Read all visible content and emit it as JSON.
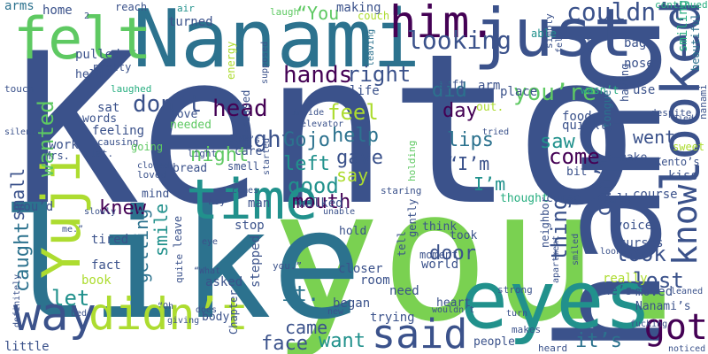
{
  "colors": {
    "background": "#ffffff",
    "palette": [
      "#3b528b",
      "#2c728e",
      "#21918c",
      "#28ae80",
      "#5ec962",
      "#addc30",
      "#440154",
      "#472d7b"
    ]
  },
  "words": [
    {
      "text": "Kento",
      "color": "#3b528b"
    },
    {
      "text": "you.",
      "color": "#7ad151"
    },
    {
      "text": "like",
      "color": "#2c728e"
    },
    {
      "text": "hand",
      "color": "#3b528b"
    },
    {
      "text": "Nanami",
      "color": "#2c728e"
    },
    {
      "text": "just",
      "color": "#3b528b"
    },
    {
      "text": "eyes",
      "color": "#21918c"
    },
    {
      "text": "time",
      "color": "#21918c"
    },
    {
      "text": "felt",
      "color": "#5ec962"
    },
    {
      "text": "him.",
      "color": "#440154"
    },
    {
      "text": "didn’t",
      "color": "#addc30"
    },
    {
      "text": "said",
      "color": "#3b528b"
    },
    {
      "text": "looked",
      "color": "#3b528b"
    },
    {
      "text": "know",
      "color": "#3b528b"
    },
    {
      "text": "got",
      "color": "#440154"
    },
    {
      "text": "way",
      "color": "#3b528b"
    },
    {
      "text": "Yuji",
      "color": "#addc30"
    },
    {
      "text": "couldn’t",
      "color": "#3b528b"
    },
    {
      "text": "looking",
      "color": "#3b528b"
    },
    {
      "text": "head",
      "color": "#440154"
    },
    {
      "text": "“You",
      "color": "#5ec962"
    },
    {
      "text": "sight",
      "color": "#3b528b"
    },
    {
      "text": "hands",
      "color": "#440154"
    },
    {
      "text": "right",
      "color": "#3b528b"
    },
    {
      "text": "did",
      "color": "#2c728e"
    },
    {
      "text": "you’re",
      "color": "#5ec962"
    },
    {
      "text": "don’t",
      "color": "#3b528b"
    },
    {
      "text": "feel",
      "color": "#addc30"
    },
    {
      "text": "day",
      "color": "#440154"
    },
    {
      "text": "wanted",
      "color": "#5ec962"
    },
    {
      "text": "Gojo",
      "color": "#2c728e"
    },
    {
      "text": "help",
      "color": "#2c728e"
    },
    {
      "text": "lips",
      "color": "#2c728e"
    },
    {
      "text": "saw",
      "color": "#21918c"
    },
    {
      "text": "went",
      "color": "#3b528b"
    },
    {
      "text": "night",
      "color": "#5ec962"
    },
    {
      "text": "left",
      "color": "#21918c"
    },
    {
      "text": "gave",
      "color": "#3b528b"
    },
    {
      "text": "come",
      "color": "#440154"
    },
    {
      "text": "“I’m",
      "color": "#3b528b"
    },
    {
      "text": "say",
      "color": "#addc30"
    },
    {
      "text": "good",
      "color": "#21918c"
    },
    {
      "text": "I’m",
      "color": "#21918c"
    },
    {
      "text": "small",
      "color": "#3b528b"
    },
    {
      "text": "caught",
      "color": "#2c728e"
    },
    {
      "text": "knew",
      "color": "#440154"
    },
    {
      "text": "mouth",
      "color": "#440154"
    },
    {
      "text": "can’t",
      "color": "#3b528b"
    },
    {
      "text": "thing",
      "color": "#3b528b"
    },
    {
      "text": "look",
      "color": "#3b528b"
    },
    {
      "text": "getting",
      "color": "#2c728e"
    },
    {
      "text": "smile",
      "color": "#21918c"
    },
    {
      "text": "let",
      "color": "#21918c"
    },
    {
      "text": "it.",
      "color": "#2c728e"
    },
    {
      "text": "came",
      "color": "#3b528b"
    },
    {
      "text": "door",
      "color": "#3b528b"
    },
    {
      "text": "lost",
      "color": "#3b528b"
    },
    {
      "text": "face",
      "color": "#3b528b"
    },
    {
      "text": "want",
      "color": "#21918c"
    },
    {
      "text": "it’s",
      "color": "#2c728e"
    },
    {
      "text": "arms",
      "color": "#2c728e"
    },
    {
      "text": "home",
      "color": "#3b528b"
    },
    {
      "text": "reach",
      "color": "#3b528b"
    },
    {
      "text": "air",
      "color": "#21918c"
    },
    {
      "text": "turned",
      "color": "#3b528b"
    },
    {
      "text": "laugh",
      "color": "#5ec962"
    },
    {
      "text": "making",
      "color": "#3b528b"
    },
    {
      "text": "couch",
      "color": "#addc30"
    },
    {
      "text": "able",
      "color": "#21918c"
    },
    {
      "text": "continued",
      "color": "#28ae80"
    },
    {
      "text": "smiling",
      "color": "#28ae80"
    },
    {
      "text": "bag",
      "color": "#3b528b"
    },
    {
      "text": "beautiful",
      "color": "#2c728e"
    },
    {
      "text": "energy",
      "color": "#addc30"
    },
    {
      "text": "supposed",
      "color": "#3b528b"
    },
    {
      "text": "leaving",
      "color": "#2c728e"
    },
    {
      "text": "simply",
      "color": "#3b528b"
    },
    {
      "text": "his.",
      "color": "#3b528b"
    },
    {
      "text": "fell",
      "color": "#3b528b"
    },
    {
      "text": "pulled",
      "color": "#3b528b"
    },
    {
      "text": "pretty",
      "color": "#3b528b"
    },
    {
      "text": "held",
      "color": "#3b528b"
    },
    {
      "text": "nose",
      "color": "#3b528b"
    },
    {
      "text": "use",
      "color": "#3b528b"
    },
    {
      "text": "wasn’t",
      "color": "#28ae80"
    },
    {
      "text": "having",
      "color": "#3b528b"
    },
    {
      "text": "nanami",
      "color": "#3b528b"
    },
    {
      "text": "life",
      "color": "#3b528b"
    },
    {
      "text": "soft",
      "color": "#3b528b"
    },
    {
      "text": "place",
      "color": "#3b528b"
    },
    {
      "text": "arm",
      "color": "#3b528b"
    },
    {
      "text": "laughed",
      "color": "#28ae80"
    },
    {
      "text": "out.",
      "color": "#addc30"
    },
    {
      "text": "tongue",
      "color": "#2c728e"
    },
    {
      "text": "food",
      "color": "#3b528b"
    },
    {
      "text": "despite",
      "color": "#3b528b"
    },
    {
      "text": "sat",
      "color": "#3b528b"
    },
    {
      "text": "words",
      "color": "#3b528b"
    },
    {
      "text": "touch",
      "color": "#3b528b"
    },
    {
      "text": "love",
      "color": "#3b528b"
    },
    {
      "text": "needed",
      "color": "#5ec962"
    },
    {
      "text": "inside",
      "color": "#3b528b"
    },
    {
      "text": "elevator",
      "color": "#3b528b"
    },
    {
      "text": "quickly",
      "color": "#3b528b"
    },
    {
      "text": "died",
      "color": "#3b528b"
    },
    {
      "text": "feeling",
      "color": "#3b528b"
    },
    {
      "text": "kissed",
      "color": "#3b528b"
    },
    {
      "text": "He’s",
      "color": "#3b528b"
    },
    {
      "text": "tried",
      "color": "#3b528b"
    },
    {
      "text": "sweet",
      "color": "#addc30"
    },
    {
      "text": "causing",
      "color": "#3b528b"
    },
    {
      "text": "silence",
      "color": "#3b528b"
    },
    {
      "text": "make",
      "color": "#3b528b"
    },
    {
      "text": "Kento’s",
      "color": "#3b528b"
    },
    {
      "text": "kiss",
      "color": "#3b528b"
    },
    {
      "text": "work",
      "color": "#3b528b"
    },
    {
      "text": "going",
      "color": "#5ec962"
    },
    {
      "text": "light",
      "color": "#3b528b"
    },
    {
      "text": "care",
      "color": "#3b528b"
    },
    {
      "text": "Mrs.",
      "color": "#3b528b"
    },
    {
      "text": "flat.",
      "color": "#3b528b"
    },
    {
      "text": "closed",
      "color": "#3b528b"
    },
    {
      "text": "smell",
      "color": "#3b528b"
    },
    {
      "text": "started",
      "color": "#3b528b"
    },
    {
      "text": "holding",
      "color": "#5ec962"
    },
    {
      "text": "bit",
      "color": "#3b528b"
    },
    {
      "text": "loved",
      "color": "#3b528b"
    },
    {
      "text": "bread",
      "color": "#3b528b"
    },
    {
      "text": "comes",
      "color": "#3b528b"
    },
    {
      "text": "staring",
      "color": "#3b528b"
    },
    {
      "text": "you’d",
      "color": "#3b528b"
    },
    {
      "text": "mind",
      "color": "#3b528b"
    },
    {
      "text": "boy",
      "color": "#3b528b"
    },
    {
      "text": "man",
      "color": "#3b528b"
    },
    {
      "text": "walked",
      "color": "#3b528b"
    },
    {
      "text": "unable",
      "color": "#3b528b"
    },
    {
      "text": "thought",
      "color": "#28ae80"
    },
    {
      "text": "curse",
      "color": "#3b528b"
    },
    {
      "text": "talk",
      "color": "#3b528b"
    },
    {
      "text": "course",
      "color": "#3b528b"
    },
    {
      "text": "neighbor",
      "color": "#3b528b"
    },
    {
      "text": "slowly",
      "color": "#3b528b"
    },
    {
      "text": "me.”",
      "color": "#3b528b"
    },
    {
      "text": "stop",
      "color": "#3b528b"
    },
    {
      "text": "hold",
      "color": "#3b528b"
    },
    {
      "text": "think",
      "color": "#3b528b"
    },
    {
      "text": "gently",
      "color": "#3b528b"
    },
    {
      "text": "tired",
      "color": "#3b528b"
    },
    {
      "text": "eye",
      "color": "#3b528b"
    },
    {
      "text": "took",
      "color": "#3b528b"
    },
    {
      "text": "voice",
      "color": "#3b528b"
    },
    {
      "text": "fact",
      "color": "#3b528b"
    },
    {
      "text": "leave",
      "color": "#3b528b"
    },
    {
      "text": "moment",
      "color": "#3b528b"
    },
    {
      "text": "curses",
      "color": "#3b528b"
    },
    {
      "text": "book",
      "color": "#addc30"
    },
    {
      "text": "quite",
      "color": "#3b528b"
    },
    {
      "text": "“What",
      "color": "#3b528b"
    },
    {
      "text": "tell",
      "color": "#3b528b"
    },
    {
      "text": "world",
      "color": "#3b528b"
    },
    {
      "text": "apartment",
      "color": "#3b528b"
    },
    {
      "text": "looks",
      "color": "#3b528b"
    },
    {
      "text": "smiled",
      "color": "#3b528b"
    },
    {
      "text": "asked",
      "color": "#3b528b"
    },
    {
      "text": "you.”",
      "color": "#3b528b"
    },
    {
      "text": "stepped",
      "color": "#3b528b"
    },
    {
      "text": "really",
      "color": "#addc30"
    },
    {
      "text": "moved",
      "color": "#3b528b"
    },
    {
      "text": "definitely",
      "color": "#3b528b"
    },
    {
      "text": "room",
      "color": "#3b528b"
    },
    {
      "text": "he’s",
      "color": "#3b528b"
    },
    {
      "text": "“Oh",
      "color": "#3b528b"
    },
    {
      "text": "closer",
      "color": "#3b528b"
    },
    {
      "text": "need",
      "color": "#3b528b"
    },
    {
      "text": "strong",
      "color": "#3b528b"
    },
    {
      "text": "leaned",
      "color": "#3b528b"
    },
    {
      "text": "body",
      "color": "#3b528b"
    },
    {
      "text": "does",
      "color": "#3b528b"
    },
    {
      "text": "began",
      "color": "#3b528b"
    },
    {
      "text": "heart",
      "color": "#3b528b"
    },
    {
      "text": "Nanami’s",
      "color": "#3b528b"
    },
    {
      "text": "giving",
      "color": "#3b528b"
    },
    {
      "text": "new",
      "color": "#3b528b"
    },
    {
      "text": "wouldn’t",
      "color": "#3b528b"
    },
    {
      "text": "turn",
      "color": "#3b528b"
    },
    {
      "text": "bed",
      "color": "#3b528b"
    },
    {
      "text": "Chapter",
      "color": "#3b528b"
    },
    {
      "text": "trying",
      "color": "#3b528b"
    },
    {
      "text": "makes",
      "color": "#3b528b"
    },
    {
      "text": "fucking",
      "color": "#3b528b"
    },
    {
      "text": "little",
      "color": "#3b528b"
    },
    {
      "text": "people",
      "color": "#3b528b"
    },
    {
      "text": "heard",
      "color": "#3b528b"
    },
    {
      "text": "noticed",
      "color": "#3b528b"
    },
    {
      "text": "2",
      "color": "#3b528b"
    }
  ]
}
